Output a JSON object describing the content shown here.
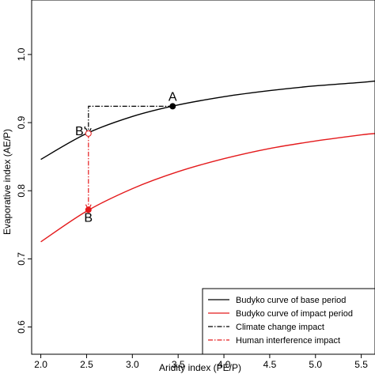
{
  "chart_data": {
    "type": "line",
    "title": "",
    "xlabel": "Aridity index (PE/P)",
    "ylabel": "Evaporative index (AE/P)",
    "xlim": [
      1.9,
      5.65
    ],
    "ylim": [
      0.56,
      1.08
    ],
    "x_ticks": [
      "2.0",
      "2.5",
      "3.0",
      "3.5",
      "4.0",
      "4.5",
      "5.0",
      "5.5"
    ],
    "y_ticks": [
      "0.6",
      "0.7",
      "0.8",
      "0.9",
      "1.0"
    ],
    "grid": false,
    "legend_position": "bottom-right",
    "series": [
      {
        "name": "Budyko curve of base period",
        "color": "#000000",
        "style": "solid",
        "x": [
          2.0,
          2.5,
          3.0,
          3.5,
          4.0,
          4.5,
          5.0,
          5.5,
          5.65
        ],
        "values": [
          0.846,
          0.884,
          0.909,
          0.926,
          0.938,
          0.947,
          0.954,
          0.959,
          0.961
        ]
      },
      {
        "name": "Budyko curve of impact period",
        "color": "#e41a1c",
        "style": "solid",
        "x": [
          2.0,
          2.5,
          3.0,
          3.5,
          4.0,
          4.5,
          5.0,
          5.5,
          5.65
        ],
        "values": [
          0.725,
          0.77,
          0.803,
          0.828,
          0.847,
          0.862,
          0.873,
          0.882,
          0.884
        ]
      },
      {
        "name": "Climate change impact",
        "color": "#000000",
        "style": "dash-dot",
        "x": [
          3.44,
          2.52,
          2.52
        ],
        "values": [
          0.924,
          0.924,
          0.884
        ]
      },
      {
        "name": "Human interference impact",
        "color": "#e41a1c",
        "style": "dash-dot",
        "x": [
          2.52,
          2.52
        ],
        "values": [
          0.884,
          0.772
        ]
      }
    ],
    "points": [
      {
        "label": "A",
        "x": 3.44,
        "y": 0.924,
        "color": "#000000"
      },
      {
        "label": "B'",
        "x": 2.52,
        "y": 0.884,
        "color": "#000000"
      },
      {
        "label": "B",
        "x": 2.52,
        "y": 0.772,
        "color": "#e41a1c"
      }
    ]
  }
}
